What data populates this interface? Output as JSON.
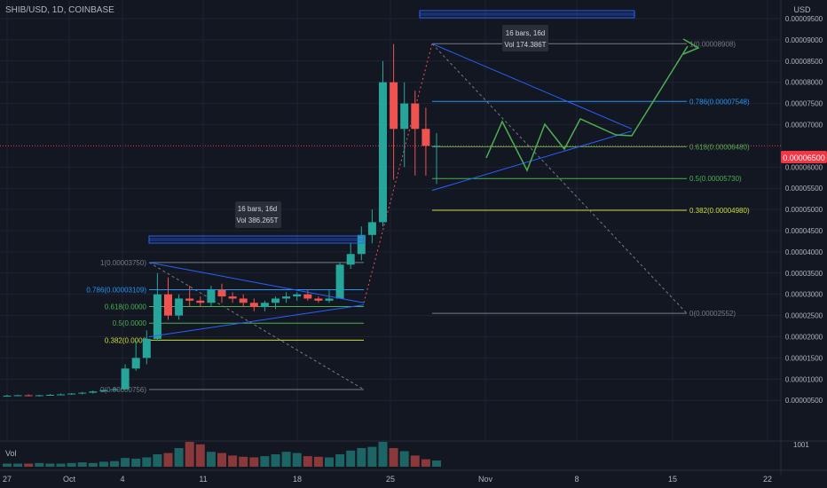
{
  "header": {
    "symbol": "SHIB/USD, 1D, COINBASE"
  },
  "price_axis": {
    "currency": "USD",
    "labels": [
      "0.00009500",
      "0.00009000",
      "0.00008500",
      "0.00008000",
      "0.00007500",
      "0.00007000",
      "0.00006000",
      "0.00005500",
      "0.00005000",
      "0.00004500",
      "0.00004000",
      "0.00003500",
      "0.00003000",
      "0.00002500",
      "0.00002000",
      "0.00001500",
      "0.00001000",
      "0.00000500"
    ],
    "current_price": "0.00006500",
    "volume_label": "1001"
  },
  "time_axis": {
    "labels": [
      "27",
      "Oct",
      "4",
      "11",
      "18",
      "25",
      "Nov",
      "8",
      "15",
      "22"
    ]
  },
  "volume": {
    "label": "Vol"
  },
  "annotations": {
    "box1_line1": "16 bars, 16d",
    "box1_line2": "Vol 386.265T",
    "box2_line1": "16 bars, 16d",
    "box2_line2": "Vol 174.386T"
  },
  "fib1": {
    "l1": "1(0.00003750)",
    "l786": "0.786(0.00003109)",
    "l618": "0.618(0.0000",
    "l5": "0.5(0.0000",
    "l382": "0.382(0.0000",
    "l0": "0(0.00000756)"
  },
  "fib2": {
    "l1": "1(0.00008908)",
    "l786": "0.786(0.00007548)",
    "l618": "0.618(0.00006480)",
    "l5": "0.5(0.00005730)",
    "l382": "0.382(0.00004980)",
    "l0": "0(0.00002552)"
  },
  "colors": {
    "bg": "#131722",
    "up": "#26a69a",
    "down": "#ef5350",
    "grid": "#1f2331",
    "fib": "#787b86",
    "trend": "#2962ff",
    "green": "#4caf50",
    "axis_text": "#b2b5be",
    "price_tag": "#f23645"
  },
  "chart_data": {
    "type": "candlestick",
    "x": [
      "Sep 21",
      "Sep 22",
      "Sep 23",
      "Sep 24",
      "Sep 25",
      "Sep 26",
      "Sep 27",
      "Sep 28",
      "Sep 29",
      "Sep 30",
      "Oct 1",
      "Oct 2",
      "Oct 3",
      "Oct 4",
      "Oct 5",
      "Oct 6",
      "Oct 7",
      "Oct 8",
      "Oct 9",
      "Oct 10",
      "Oct 11",
      "Oct 12",
      "Oct 13",
      "Oct 14",
      "Oct 15",
      "Oct 16",
      "Oct 17",
      "Oct 18",
      "Oct 19",
      "Oct 20",
      "Oct 21",
      "Oct 22",
      "Oct 23",
      "Oct 24",
      "Oct 25",
      "Oct 26",
      "Oct 27",
      "Oct 28",
      "Oct 29",
      "Oct 30",
      "Oct 31"
    ],
    "candles": [
      {
        "o": 6e-06,
        "h": 6.3e-06,
        "l": 5.9e-06,
        "c": 6.1e-06
      },
      {
        "o": 6.1e-06,
        "h": 6.3e-06,
        "l": 6e-06,
        "c": 6.2e-06
      },
      {
        "o": 6.2e-06,
        "h": 6.4e-06,
        "l": 6e-06,
        "c": 6.1e-06
      },
      {
        "o": 6.1e-06,
        "h": 6.3e-06,
        "l": 5.9e-06,
        "c": 6.2e-06
      },
      {
        "o": 6.2e-06,
        "h": 6.5e-06,
        "l": 6.1e-06,
        "c": 6.3e-06
      },
      {
        "o": 6.3e-06,
        "h": 6.6e-06,
        "l": 6.2e-06,
        "c": 6.4e-06
      },
      {
        "o": 6.4e-06,
        "h": 6.7e-06,
        "l": 6.3e-06,
        "c": 6.6e-06
      },
      {
        "o": 6.6e-06,
        "h": 7e-06,
        "l": 6.4e-06,
        "c": 6.8e-06
      },
      {
        "o": 6.8e-06,
        "h": 7.3e-06,
        "l": 6.6e-06,
        "c": 7.1e-06
      },
      {
        "o": 7.1e-06,
        "h": 7.5e-06,
        "l": 7e-06,
        "c": 7.4e-06
      },
      {
        "o": 7.4e-06,
        "h": 8e-06,
        "l": 7.3e-06,
        "c": 7.6e-06
      },
      {
        "o": 7.6e-06,
        "h": 1.35e-05,
        "l": 7.5e-06,
        "c": 1.25e-05
      },
      {
        "o": 1.25e-05,
        "h": 1.9e-05,
        "l": 1.2e-05,
        "c": 1.5e-05
      },
      {
        "o": 1.5e-05,
        "h": 2.15e-05,
        "l": 1.35e-05,
        "c": 1.95e-05
      },
      {
        "o": 1.95e-05,
        "h": 3.5e-05,
        "l": 1.9e-05,
        "c": 3e-05
      },
      {
        "o": 3e-05,
        "h": 3.4e-05,
        "l": 2.4e-05,
        "c": 2.5e-05
      },
      {
        "o": 2.5e-05,
        "h": 3e-05,
        "l": 2.4e-05,
        "c": 2.9e-05
      },
      {
        "o": 2.9e-05,
        "h": 3.2e-05,
        "l": 2.7e-05,
        "c": 2.85e-05
      },
      {
        "o": 2.85e-05,
        "h": 2.95e-05,
        "l": 2.7e-05,
        "c": 2.8e-05
      },
      {
        "o": 2.8e-05,
        "h": 3.2e-05,
        "l": 2.7e-05,
        "c": 3.1e-05
      },
      {
        "o": 3.1e-05,
        "h": 3.25e-05,
        "l": 2.8e-05,
        "c": 2.95e-05
      },
      {
        "o": 2.95e-05,
        "h": 3.05e-05,
        "l": 2.8e-05,
        "c": 2.9e-05
      },
      {
        "o": 2.9e-05,
        "h": 3e-05,
        "l": 2.7e-05,
        "c": 2.8e-05
      },
      {
        "o": 2.8e-05,
        "h": 2.9e-05,
        "l": 2.6e-05,
        "c": 2.7e-05
      },
      {
        "o": 2.7e-05,
        "h": 2.85e-05,
        "l": 2.6e-05,
        "c": 2.8e-05
      },
      {
        "o": 2.8e-05,
        "h": 2.95e-05,
        "l": 2.65e-05,
        "c": 2.9e-05
      },
      {
        "o": 2.9e-05,
        "h": 3.05e-05,
        "l": 2.8e-05,
        "c": 2.95e-05
      },
      {
        "o": 2.95e-05,
        "h": 3.05e-05,
        "l": 2.85e-05,
        "c": 3e-05
      },
      {
        "o": 3e-05,
        "h": 3.1e-05,
        "l": 2.85e-05,
        "c": 2.9e-05
      },
      {
        "o": 2.9e-05,
        "h": 2.95e-05,
        "l": 2.8e-05,
        "c": 2.85e-05
      },
      {
        "o": 2.85e-05,
        "h": 3.1e-05,
        "l": 2.8e-05,
        "c": 2.9e-05
      },
      {
        "o": 2.9e-05,
        "h": 3.75e-05,
        "l": 2.9e-05,
        "c": 3.7e-05
      },
      {
        "o": 3.7e-05,
        "h": 4.2e-05,
        "l": 3.6e-05,
        "c": 3.95e-05
      },
      {
        "o": 3.95e-05,
        "h": 4.6e-05,
        "l": 3.8e-05,
        "c": 4.4e-05
      },
      {
        "o": 4.4e-05,
        "h": 5e-05,
        "l": 4.2e-05,
        "c": 4.7e-05
      },
      {
        "o": 4.7e-05,
        "h": 8.5e-05,
        "l": 4.6e-05,
        "c": 8e-05
      },
      {
        "o": 8e-05,
        "h": 8.9e-05,
        "l": 5.7e-05,
        "c": 6.9e-05
      },
      {
        "o": 6.9e-05,
        "h": 8e-05,
        "l": 6e-05,
        "c": 7.5e-05
      },
      {
        "o": 7.5e-05,
        "h": 7.8e-05,
        "l": 5.8e-05,
        "c": 6.9e-05
      },
      {
        "o": 6.9e-05,
        "h": 7.4e-05,
        "l": 5.8e-05,
        "c": 6.5e-05
      },
      {
        "o": 6.5e-05,
        "h": 6.8e-05,
        "l": 5.6e-05,
        "c": 6.5e-05
      }
    ],
    "volume": [
      5,
      5,
      5,
      6,
      5,
      5,
      6,
      7,
      6,
      8,
      9,
      14,
      13,
      15,
      20,
      22,
      30,
      40,
      36,
      24,
      22,
      18,
      16,
      15,
      17,
      20,
      24,
      22,
      17,
      16,
      15,
      20,
      26,
      30,
      32,
      40,
      30,
      25,
      18,
      12,
      10
    ],
    "fib_retracement_1": {
      "1": 3.75e-05,
      "0.786": 3.109e-05,
      "0.618": null,
      "0.5": null,
      "0.382": null,
      "0": 7.56e-06
    },
    "fib_retracement_2": {
      "1": 8.908e-05,
      "0.786": 7.548e-05,
      "0.618": 6.48e-05,
      "0.5": 5.73e-05,
      "0.382": 4.98e-05,
      "0": 2.552e-05
    }
  }
}
